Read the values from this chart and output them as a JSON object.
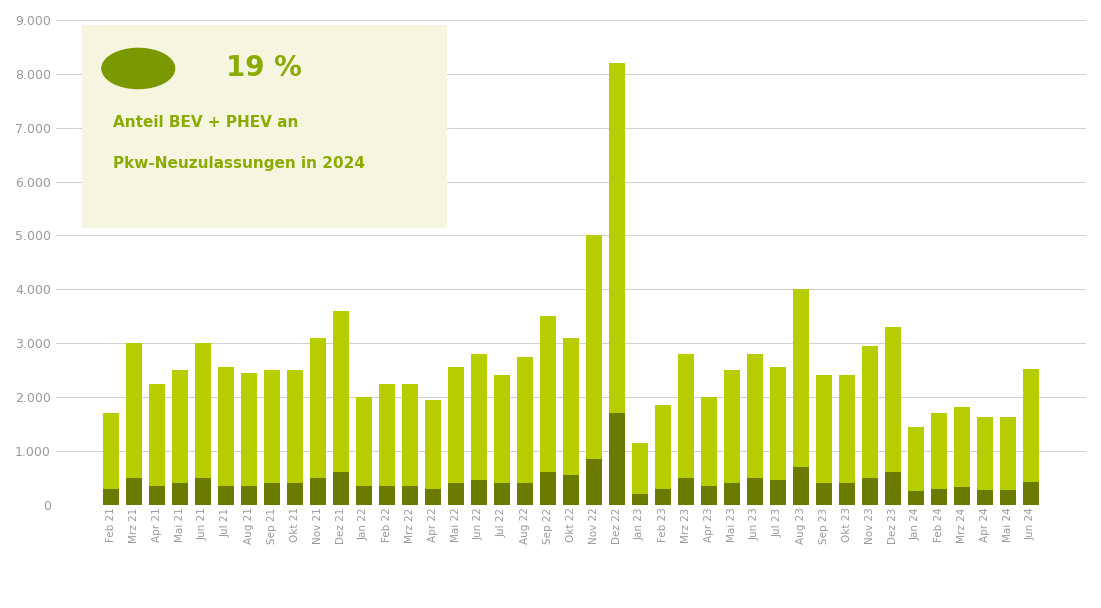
{
  "categories": [
    "Feb 21",
    "Mrz 21",
    "Apr 21",
    "Mai 21",
    "Jun 21",
    "Jul 21",
    "Aug 21",
    "Sep 21",
    "Okt 21",
    "Nov 21",
    "Dez 21",
    "Jan 22",
    "Feb 22",
    "Mrz 22",
    "Apr 22",
    "Mai 22",
    "Jun 22",
    "Jul 22",
    "Aug 22",
    "Sep 22",
    "Okt 22",
    "Nov 22",
    "Dez 22",
    "Jan 23",
    "Feb 23",
    "Mrz 23",
    "Apr 23",
    "Mai 23",
    "Jun 23",
    "Jul 23",
    "Aug 23",
    "Sep 23",
    "Okt 23",
    "Nov 23",
    "Dez 23",
    "Jan 24",
    "Feb 24",
    "Mrz 24",
    "Apr 24",
    "Mai 24",
    "Jun 24"
  ],
  "bev_values": [
    300,
    500,
    350,
    400,
    500,
    350,
    350,
    400,
    400,
    500,
    600,
    350,
    350,
    350,
    300,
    400,
    450,
    400,
    400,
    600,
    550,
    850,
    1700,
    200,
    300,
    500,
    350,
    400,
    500,
    450,
    700,
    400,
    400,
    500,
    600,
    250,
    300,
    320,
    280,
    280,
    420
  ],
  "phev_values": [
    1400,
    2500,
    1900,
    2100,
    2500,
    2200,
    2100,
    2100,
    2100,
    2600,
    3000,
    1650,
    1900,
    1900,
    1650,
    2150,
    2350,
    2000,
    2350,
    2900,
    2550,
    4150,
    6500,
    950,
    1550,
    2300,
    1650,
    2100,
    2300,
    2100,
    3300,
    2000,
    2000,
    2450,
    2700,
    1200,
    1400,
    1500,
    1350,
    1350,
    2100
  ],
  "bev_color": "#6b7a00",
  "phev_color": "#b8cd00",
  "background_color": "#ffffff",
  "annotation_box_color": "#f5f5e0",
  "annotation_percent": "19 %",
  "annotation_text_line1": "Anteil BEV + PHEV an",
  "annotation_text_line2": "Pkw-Neuzulassungen in 2024",
  "annotation_color": "#8aab00",
  "icon_color": "#7a9900",
  "ylim": [
    0,
    9000
  ],
  "yticks": [
    0,
    1000,
    2000,
    3000,
    4000,
    5000,
    6000,
    7000,
    8000,
    9000
  ],
  "grid_color": "#d0d0d0",
  "tick_color": "#999999",
  "fig_bg_color": "#ffffff"
}
